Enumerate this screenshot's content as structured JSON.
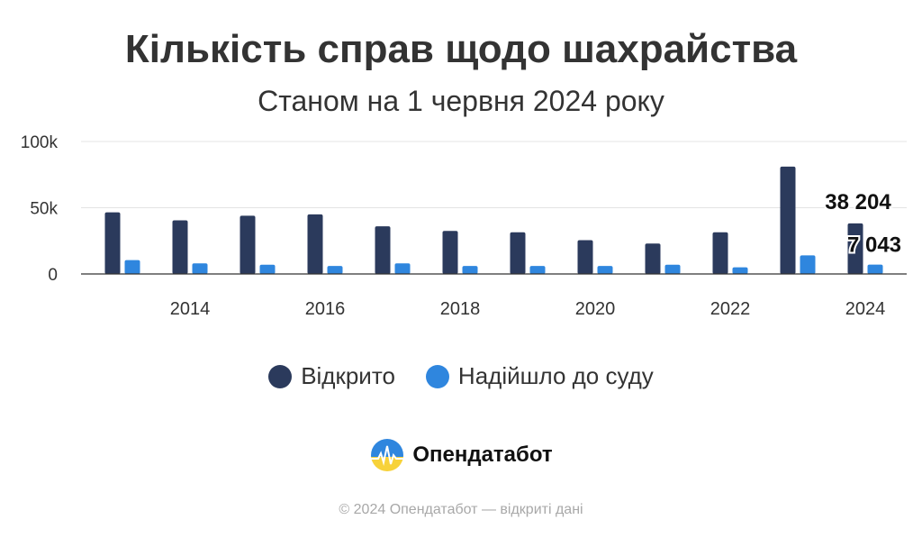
{
  "header": {
    "title": "Кількість справ щодо шахрайства",
    "subtitle": "Станом на 1 червня 2024 року"
  },
  "chart_data": {
    "type": "bar",
    "title": "Кількість справ щодо шахрайства",
    "subtitle": "Станом на 1 червня 2024 року",
    "categories": [
      2013,
      2014,
      2015,
      2016,
      2017,
      2018,
      2019,
      2020,
      2021,
      2022,
      2023,
      2024
    ],
    "x_tick_labels": [
      "2014",
      "2016",
      "2018",
      "2020",
      "2022",
      "2024"
    ],
    "y_tick_labels": [
      "0",
      "50k",
      "100k"
    ],
    "ylim": [
      0,
      100000
    ],
    "grid": true,
    "legend_position": "bottom",
    "series": [
      {
        "name": "Відкрито",
        "color": "#2b3a5c",
        "values": [
          46500,
          40500,
          44000,
          45000,
          36000,
          32500,
          31500,
          25500,
          23000,
          31500,
          81000,
          38204
        ]
      },
      {
        "name": "Надійшло до суду",
        "color": "#2f86de",
        "values": [
          10500,
          8000,
          7000,
          6000,
          8000,
          6000,
          6000,
          6000,
          7000,
          5000,
          14000,
          7043
        ]
      }
    ],
    "data_labels": [
      {
        "series": "Відкрито",
        "category": 2024,
        "text": "38 204"
      },
      {
        "series": "Надійшло до суду",
        "category": 2024,
        "text": "7 043"
      }
    ]
  },
  "branding": {
    "name": "Опендатабот",
    "logo_colors": [
      "#2f86de",
      "#f7d23a"
    ]
  },
  "footer": {
    "text": "© 2024 Опендатабот — відкриті дані"
  }
}
